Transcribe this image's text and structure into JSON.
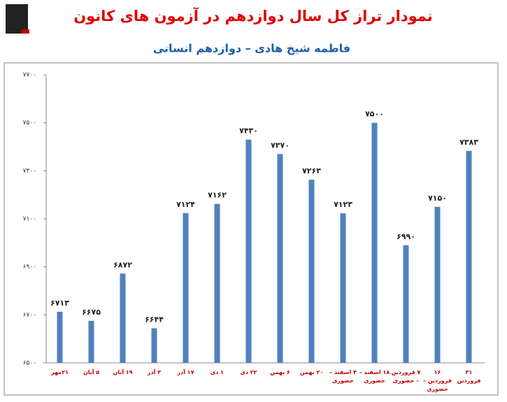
{
  "chart_data": {
    "type": "bar",
    "title": "نمودار تراز کل سال دوازدهم در آزمون های کانون",
    "subtitle": "فاطمه شیخ هادی – دوازدهم انسانی",
    "categories": [
      "۲۱مهر",
      "۵ آبان",
      "۱۹ آبان",
      "۳ آذر",
      "۱۷ آذر",
      "۱ دی",
      "۲۲ دی",
      "۶ بهمن",
      "۲۰ بهمن",
      "۴ اسفند – حضوری",
      "۱۸ اسفند – حضوری",
      "۷ فروردین – حضوری",
      "۱۶ فروردین – حضوری",
      "۳۱ فروردین"
    ],
    "values": [
      6713,
      6675,
      6872,
      6644,
      7124,
      7162,
      7430,
      7370,
      7263,
      7123,
      7500,
      6990,
      7150,
      7383
    ],
    "value_labels": [
      "۶۷۱۳",
      "۶۶۷۵",
      "۶۸۷۲",
      "۶۶۴۴",
      "۷۱۲۴",
      "۷۱۶۲",
      "۷۴۳۰",
      "۷۳۷۰",
      "۷۲۶۳",
      "۷۱۲۳",
      "۷۵۰۰",
      "۶۹۹۰",
      "۷۱۵۰",
      "۷۳۸۳"
    ],
    "color": "#4f81bd",
    "ylim": [
      6500,
      7700
    ],
    "yticks": [
      {
        "value": 6500,
        "label": "۶۵۰۰"
      },
      {
        "value": 6700,
        "label": "۶۷۰۰"
      },
      {
        "value": 6900,
        "label": "۶۹۰۰"
      },
      {
        "value": 7100,
        "label": "۷۱۰۰"
      },
      {
        "value": 7300,
        "label": "۷۳۰۰"
      },
      {
        "value": 7500,
        "label": "۷۵۰۰"
      },
      {
        "value": 7700,
        "label": "۷۷۰۰"
      }
    ],
    "grid": false
  }
}
